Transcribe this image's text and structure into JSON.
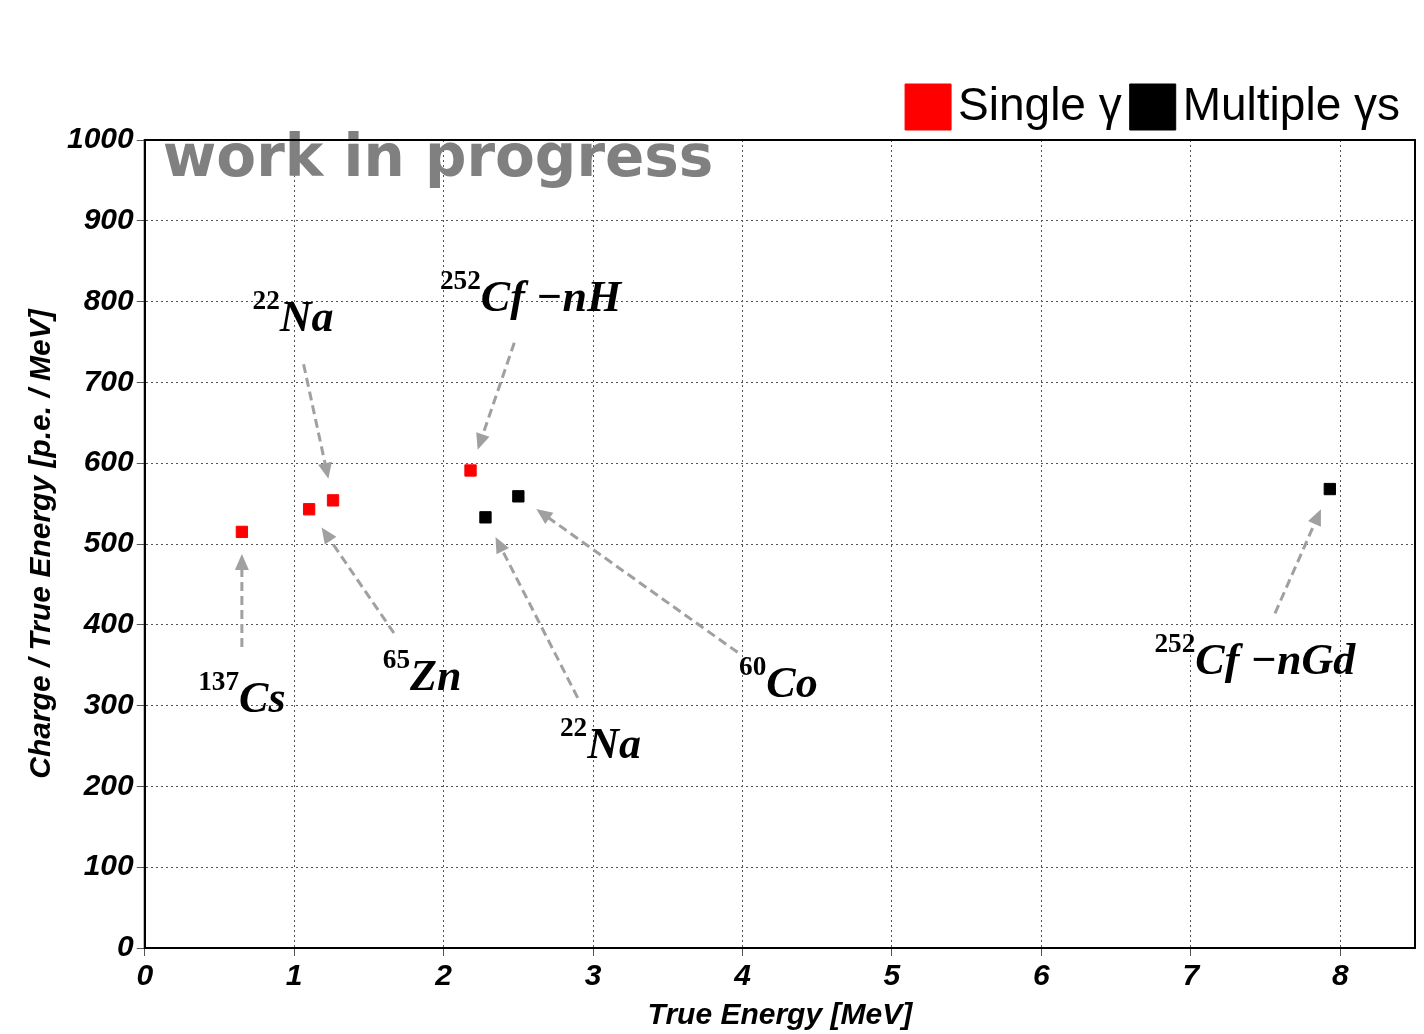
{
  "chart_data": {
    "type": "scatter",
    "xlabel": "True Energy [MeV]",
    "ylabel": "Charge / True Energy [p.e. / MeV]",
    "xlim": [
      0,
      8.5
    ],
    "xticks": [
      0,
      1,
      2,
      3,
      4,
      5,
      6,
      7,
      8
    ],
    "ylim": [
      0,
      1000
    ],
    "yticks": [
      0,
      100,
      200,
      300,
      400,
      500,
      600,
      700,
      800,
      900,
      1000
    ],
    "grid": true,
    "legend": "top right",
    "marker": "square",
    "series": [
      {
        "name": "Single γ",
        "color": "#ff0000",
        "x": [
          0.65,
          1.1,
          1.26,
          2.18
        ],
        "values": [
          515,
          543,
          554,
          591
        ]
      },
      {
        "name": "Multiple γs",
        "color": "#000000",
        "x": [
          2.28,
          2.5,
          7.93
        ],
        "values": [
          533,
          559,
          568
        ]
      }
    ],
    "annotations": [
      "work in progress",
      "$^{137}$Cs",
      "$^{22}$Na",
      "$^{252}$Cf −nH",
      "$^{65}$Zn",
      "$^{22}$Na",
      "$^{60}$Co",
      "$^{252}$Cf −nGd"
    ]
  }
}
